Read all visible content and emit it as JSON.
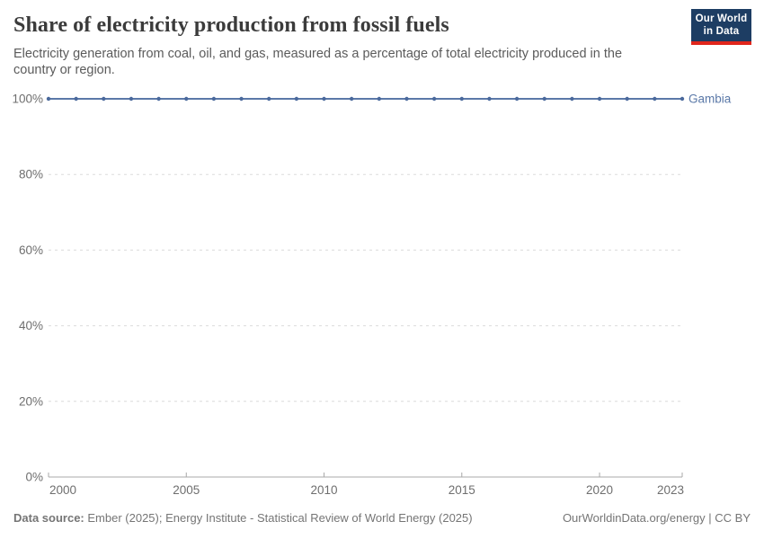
{
  "header": {
    "title": "Share of electricity production from fossil fuels",
    "subtitle": "Electricity generation from coal, oil, and gas, measured as a percentage of total electricity produced in the country or region.",
    "logo": {
      "line1": "Our World",
      "line2": "in Data"
    }
  },
  "colors": {
    "accent_line": "#5b79a8",
    "accent_marker": "#4a699c",
    "logo_bg": "#1d3d63",
    "logo_stripe": "#e0261c",
    "gridline": "#dcdcdc",
    "axis": "#a8a8a8",
    "tick_text": "#6e6e6e"
  },
  "chart_data": {
    "type": "line",
    "title": "Share of electricity production from fossil fuels",
    "xlabel": "",
    "ylabel": "",
    "xlim": [
      2000,
      2023
    ],
    "ylim": [
      0,
      100
    ],
    "grid": "horizontal-dashed",
    "legend_position": "label-at-line-end",
    "yticks": [
      {
        "v": 0,
        "label": "0%"
      },
      {
        "v": 20,
        "label": "20%"
      },
      {
        "v": 40,
        "label": "40%"
      },
      {
        "v": 60,
        "label": "60%"
      },
      {
        "v": 80,
        "label": "80%"
      },
      {
        "v": 100,
        "label": "100%"
      }
    ],
    "xticks": [
      {
        "v": 2000,
        "label": "2000"
      },
      {
        "v": 2005,
        "label": "2005"
      },
      {
        "v": 2010,
        "label": "2010"
      },
      {
        "v": 2015,
        "label": "2015"
      },
      {
        "v": 2020,
        "label": "2020"
      },
      {
        "v": 2023,
        "label": "2023"
      }
    ],
    "series": [
      {
        "name": "Gambia",
        "color": "#5b79a8",
        "marker_color": "#4a699c",
        "x": [
          2000,
          2001,
          2002,
          2003,
          2004,
          2005,
          2006,
          2007,
          2008,
          2009,
          2010,
          2011,
          2012,
          2013,
          2014,
          2015,
          2016,
          2017,
          2018,
          2019,
          2020,
          2021,
          2022,
          2023
        ],
        "values": [
          100,
          100,
          100,
          100,
          100,
          100,
          100,
          100,
          100,
          100,
          100,
          100,
          100,
          100,
          100,
          100,
          100,
          100,
          100,
          100,
          100,
          100,
          100,
          100
        ]
      }
    ]
  },
  "footer": {
    "datasource_label": "Data source:",
    "datasource_value": "Ember (2025); Energy Institute - Statistical Review of World Energy (2025)",
    "link": "OurWorldinData.org/energy | CC BY"
  }
}
